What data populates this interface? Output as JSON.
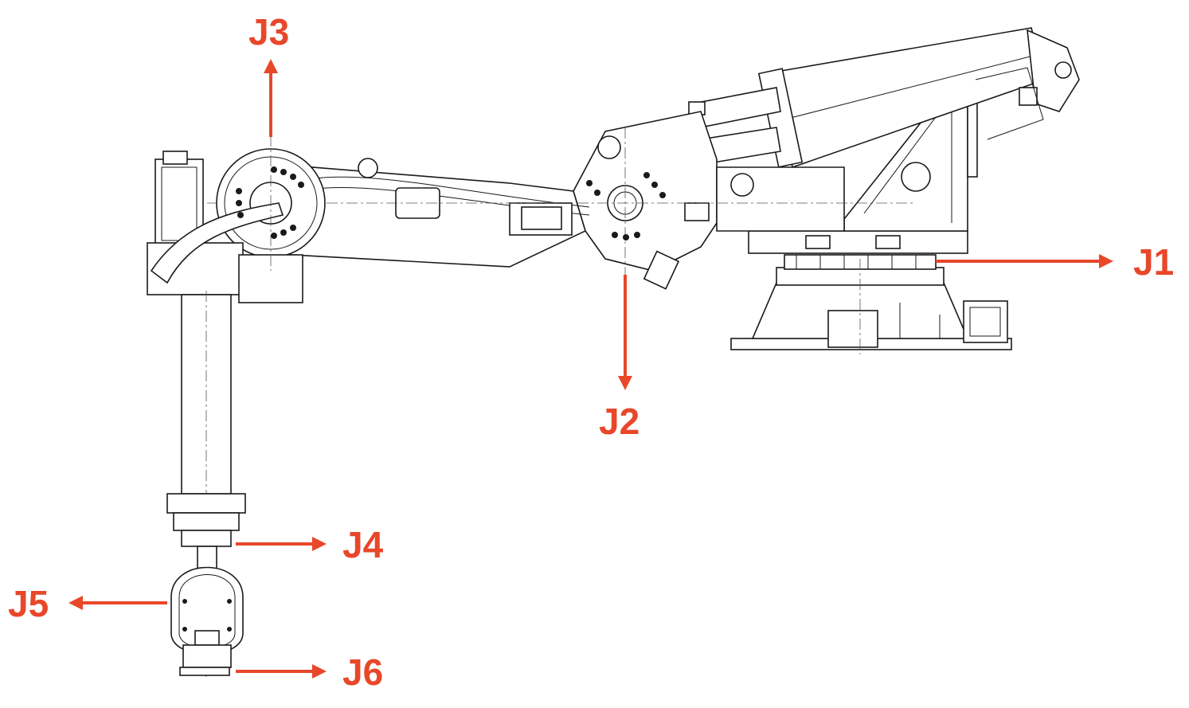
{
  "labels": {
    "j1": "J1",
    "j2": "J2",
    "j3": "J3",
    "j4": "J4",
    "j5": "J5",
    "j6": "J6"
  },
  "colors": {
    "label": "#e8472a",
    "drawing": "#1a1a1a",
    "background": "#ffffff"
  }
}
